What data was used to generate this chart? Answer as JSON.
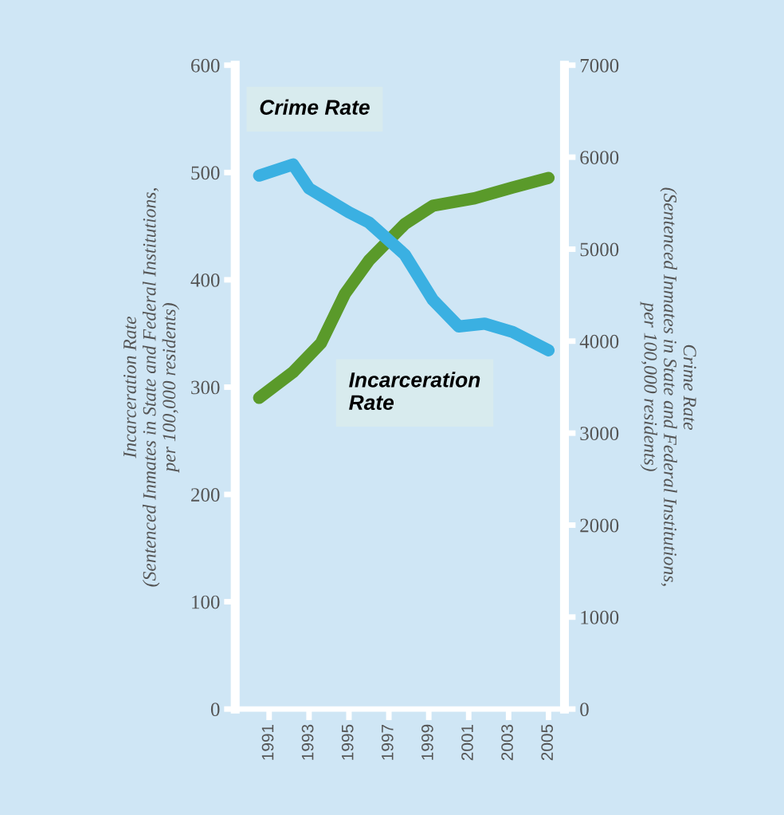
{
  "chart_data": {
    "type": "line",
    "ylabel": "Incarceration Rate\n(Sentenced Inmates in State and Federal Institutions,\nper 100,000 residents)",
    "y2label": "Crime Rate\n(Sentenced Inmates in State and Federal Institutions,\nper 100,000 residents)",
    "series": [
      {
        "name": "Crime Rate",
        "color": "#3ab0e2",
        "axis": "y2",
        "x": [
          1990.5,
          1992.2,
          1993,
          1995,
          1996,
          1997.8,
          1999.2,
          2000.5,
          2001.8,
          2003.2,
          2005
        ],
        "values": [
          5800,
          5920,
          5660,
          5400,
          5290,
          4940,
          4450,
          4160,
          4190,
          4100,
          3900
        ]
      },
      {
        "name": "Incarceration Rate",
        "color": "#5a9a2a",
        "x": [
          1990.5,
          1992.2,
          1993.6,
          1994.8,
          1996,
          1997.8,
          1999.2,
          2001.3,
          2003.2,
          2005
        ],
        "values": [
          290,
          314,
          341,
          387,
          418,
          452,
          469,
          476,
          486,
          495
        ]
      }
    ],
    "xlim": [
      1989.3,
      2005.8
    ],
    "xticks": [
      1991,
      1993,
      1995,
      1997,
      1999,
      2001,
      2003,
      2005
    ],
    "ylim": [
      0,
      600
    ],
    "yticks": [
      0,
      100,
      200,
      300,
      400,
      500,
      600
    ],
    "y2lim": [
      0,
      7000
    ],
    "y2ticks": [
      0,
      1000,
      2000,
      3000,
      4000,
      5000,
      6000,
      7000
    ],
    "grid": false,
    "legend": false,
    "line_style": "solid"
  }
}
